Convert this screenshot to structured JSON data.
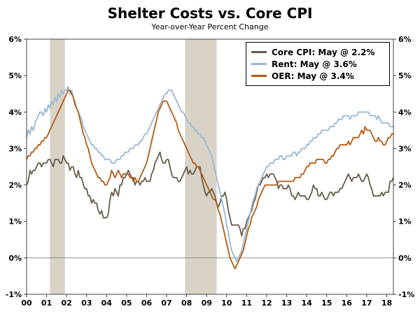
{
  "header": {
    "title": "Shelter Costs vs. Core CPI",
    "subtitle": "Year-over-Year Percent Change"
  },
  "chart_data": {
    "type": "line",
    "title": "Shelter Costs vs. Core CPI",
    "subtitle": "Year-over-Year Percent Change",
    "x_start_year": 2000,
    "x_frequency": "monthly",
    "x_end_label": "May 2018",
    "x_tick_labels": [
      "00",
      "01",
      "02",
      "03",
      "04",
      "05",
      "06",
      "07",
      "08",
      "09",
      "10",
      "11",
      "12",
      "13",
      "14",
      "15",
      "16",
      "17",
      "18"
    ],
    "y_ticks": [
      -1,
      0,
      1,
      2,
      3,
      4,
      5,
      6
    ],
    "y_tick_labels": [
      "-1%",
      "0%",
      "1%",
      "2%",
      "3%",
      "4%",
      "5%",
      "6%"
    ],
    "ylim": [
      -1,
      6
    ],
    "grid": "zero-line-only",
    "legend_position": "top-right",
    "band_color": "#d9d3c7",
    "zero_line_color": "#8c8c8c",
    "axis_color": "#404040",
    "recession_bands": [
      {
        "start": 2001.17,
        "end": 2001.92
      },
      {
        "start": 2007.92,
        "end": 2009.5
      }
    ],
    "series": [
      {
        "name": "Core CPI",
        "legend_label": "Core CPI: May @ 2.2%",
        "color": "#665c49",
        "values": [
          2.0,
          2.1,
          2.4,
          2.3,
          2.4,
          2.4,
          2.5,
          2.6,
          2.6,
          2.5,
          2.6,
          2.6,
          2.6,
          2.7,
          2.7,
          2.6,
          2.5,
          2.7,
          2.7,
          2.7,
          2.6,
          2.6,
          2.8,
          2.7,
          2.6,
          2.6,
          2.4,
          2.5,
          2.5,
          2.3,
          2.2,
          2.4,
          2.2,
          2.2,
          2.0,
          1.9,
          1.9,
          1.7,
          1.7,
          1.5,
          1.6,
          1.5,
          1.5,
          1.3,
          1.2,
          1.3,
          1.1,
          1.1,
          1.1,
          1.2,
          1.6,
          1.8,
          1.7,
          1.9,
          1.8,
          1.7,
          2.0,
          2.0,
          2.2,
          2.2,
          2.3,
          2.4,
          2.3,
          2.2,
          2.2,
          2.0,
          2.1,
          2.1,
          2.0,
          2.1,
          2.1,
          2.2,
          2.1,
          2.1,
          2.1,
          2.3,
          2.4,
          2.6,
          2.7,
          2.8,
          2.9,
          2.7,
          2.6,
          2.6,
          2.7,
          2.7,
          2.5,
          2.3,
          2.2,
          2.2,
          2.2,
          2.1,
          2.1,
          2.2,
          2.3,
          2.4,
          2.5,
          2.3,
          2.4,
          2.3,
          2.3,
          2.4,
          2.5,
          2.5,
          2.5,
          2.2,
          2.0,
          1.8,
          1.7,
          1.8,
          1.8,
          1.9,
          1.8,
          1.7,
          1.5,
          1.4,
          1.5,
          1.7,
          1.7,
          1.8,
          1.6,
          1.3,
          1.1,
          0.9,
          0.9,
          0.9,
          0.9,
          0.9,
          0.8,
          0.6,
          0.8,
          0.8,
          1.0,
          1.1,
          1.2,
          1.3,
          1.5,
          1.6,
          1.8,
          2.0,
          2.0,
          2.1,
          2.2,
          2.2,
          2.3,
          2.2,
          2.3,
          2.3,
          2.3,
          2.2,
          2.1,
          1.9,
          2.0,
          2.0,
          1.9,
          1.9,
          1.9,
          2.0,
          1.9,
          1.7,
          1.7,
          1.6,
          1.7,
          1.8,
          1.7,
          1.7,
          1.7,
          1.7,
          1.6,
          1.6,
          1.7,
          1.8,
          2.0,
          1.9,
          1.9,
          1.7,
          1.7,
          1.8,
          1.7,
          1.6,
          1.6,
          1.7,
          1.8,
          1.8,
          1.7,
          1.8,
          1.8,
          1.8,
          1.9,
          1.9,
          2.0,
          2.1,
          2.2,
          2.3,
          2.2,
          2.1,
          2.2,
          2.2,
          2.2,
          2.3,
          2.2,
          2.1,
          2.1,
          2.2,
          2.3,
          2.2,
          2.0,
          1.9,
          1.7,
          1.7,
          1.7,
          1.7,
          1.7,
          1.8,
          1.7,
          1.8,
          1.8,
          1.8,
          2.1,
          2.1,
          2.2
        ]
      },
      {
        "name": "Rent",
        "legend_label": "Rent: May @ 3.6%",
        "color": "#9ab7d4",
        "values": [
          3.3,
          3.5,
          3.4,
          3.6,
          3.5,
          3.7,
          3.8,
          3.9,
          4.0,
          4.0,
          3.9,
          4.1,
          4.0,
          4.2,
          4.1,
          4.3,
          4.2,
          4.4,
          4.3,
          4.5,
          4.4,
          4.6,
          4.5,
          4.6,
          4.6,
          4.7,
          4.5,
          4.6,
          4.4,
          4.3,
          4.1,
          4.0,
          3.9,
          3.8,
          3.6,
          3.5,
          3.4,
          3.3,
          3.2,
          3.1,
          3.1,
          3.0,
          3.0,
          2.9,
          2.9,
          2.8,
          2.8,
          2.7,
          2.7,
          2.7,
          2.7,
          2.6,
          2.6,
          2.6,
          2.7,
          2.7,
          2.7,
          2.8,
          2.8,
          2.9,
          2.9,
          2.9,
          3.0,
          3.0,
          3.0,
          3.1,
          3.1,
          3.1,
          3.2,
          3.2,
          3.3,
          3.4,
          3.4,
          3.5,
          3.6,
          3.7,
          3.8,
          3.9,
          4.0,
          4.1,
          4.2,
          4.3,
          4.4,
          4.5,
          4.5,
          4.6,
          4.6,
          4.6,
          4.5,
          4.4,
          4.3,
          4.2,
          4.1,
          4.0,
          4.0,
          3.9,
          3.8,
          3.7,
          3.7,
          3.6,
          3.6,
          3.5,
          3.5,
          3.4,
          3.4,
          3.3,
          3.3,
          3.2,
          3.1,
          3.0,
          2.9,
          2.8,
          2.6,
          2.4,
          2.2,
          2.0,
          1.8,
          1.6,
          1.4,
          1.2,
          0.9,
          0.7,
          0.4,
          0.2,
          0.1,
          0.0,
          -0.1,
          0.0,
          0.1,
          0.2,
          0.4,
          0.6,
          0.8,
          1.0,
          1.2,
          1.4,
          1.6,
          1.7,
          1.9,
          2.0,
          2.1,
          2.2,
          2.3,
          2.4,
          2.5,
          2.5,
          2.6,
          2.6,
          2.6,
          2.7,
          2.7,
          2.7,
          2.8,
          2.8,
          2.7,
          2.7,
          2.8,
          2.8,
          2.8,
          2.8,
          2.9,
          2.9,
          2.8,
          2.9,
          2.9,
          3.0,
          3.0,
          3.0,
          3.1,
          3.1,
          3.2,
          3.2,
          3.3,
          3.3,
          3.3,
          3.4,
          3.4,
          3.5,
          3.5,
          3.5,
          3.5,
          3.5,
          3.6,
          3.6,
          3.6,
          3.7,
          3.7,
          3.8,
          3.8,
          3.8,
          3.9,
          3.9,
          3.9,
          3.9,
          3.8,
          3.9,
          3.9,
          3.9,
          3.9,
          4.0,
          4.0,
          4.0,
          4.0,
          4.0,
          4.0,
          4.0,
          3.9,
          3.9,
          3.9,
          3.9,
          3.8,
          3.9,
          3.8,
          3.7,
          3.7,
          3.7,
          3.7,
          3.7,
          3.6,
          3.6,
          3.6
        ]
      },
      {
        "name": "OER",
        "legend_label": "OER: May @ 3.4%",
        "color": "#b45a12",
        "values": [
          2.7,
          2.8,
          2.8,
          2.9,
          2.9,
          3.0,
          3.0,
          3.1,
          3.1,
          3.2,
          3.2,
          3.3,
          3.3,
          3.4,
          3.5,
          3.6,
          3.7,
          3.8,
          3.9,
          4.0,
          4.1,
          4.2,
          4.3,
          4.4,
          4.5,
          4.6,
          4.6,
          4.5,
          4.4,
          4.2,
          4.1,
          4.0,
          3.8,
          3.6,
          3.4,
          3.3,
          3.1,
          3.0,
          2.8,
          2.6,
          2.5,
          2.4,
          2.3,
          2.2,
          2.2,
          2.1,
          2.1,
          2.0,
          2.0,
          2.1,
          2.2,
          2.4,
          2.3,
          2.2,
          2.3,
          2.4,
          2.3,
          2.2,
          2.3,
          2.3,
          2.3,
          2.3,
          2.2,
          2.2,
          2.1,
          2.2,
          2.1,
          2.1,
          2.2,
          2.3,
          2.4,
          2.5,
          2.6,
          2.8,
          3.0,
          3.2,
          3.4,
          3.6,
          3.8,
          4.0,
          4.1,
          4.2,
          4.3,
          4.3,
          4.3,
          4.2,
          4.1,
          4.0,
          3.9,
          3.8,
          3.7,
          3.5,
          3.4,
          3.3,
          3.2,
          3.1,
          3.0,
          2.9,
          2.8,
          2.7,
          2.6,
          2.6,
          2.5,
          2.5,
          2.4,
          2.3,
          2.2,
          2.1,
          2.0,
          1.9,
          1.8,
          1.7,
          1.6,
          1.6,
          1.5,
          1.3,
          1.2,
          1.0,
          0.8,
          0.6,
          0.4,
          0.2,
          0.0,
          -0.1,
          -0.2,
          -0.3,
          -0.2,
          -0.1,
          0.0,
          0.1,
          0.2,
          0.4,
          0.6,
          0.8,
          0.9,
          1.1,
          1.2,
          1.3,
          1.4,
          1.6,
          1.7,
          1.8,
          1.9,
          2.0,
          2.0,
          2.0,
          2.0,
          2.0,
          2.0,
          2.0,
          2.0,
          2.1,
          2.1,
          2.1,
          2.1,
          2.1,
          2.1,
          2.1,
          2.1,
          2.1,
          2.1,
          2.2,
          2.2,
          2.2,
          2.2,
          2.3,
          2.3,
          2.4,
          2.5,
          2.5,
          2.6,
          2.6,
          2.6,
          2.6,
          2.7,
          2.7,
          2.7,
          2.7,
          2.7,
          2.6,
          2.6,
          2.7,
          2.7,
          2.8,
          2.8,
          2.9,
          3.0,
          3.0,
          3.1,
          3.1,
          3.1,
          3.1,
          3.1,
          3.2,
          3.1,
          3.2,
          3.3,
          3.3,
          3.3,
          3.3,
          3.4,
          3.5,
          3.4,
          3.6,
          3.5,
          3.5,
          3.5,
          3.4,
          3.3,
          3.2,
          3.2,
          3.3,
          3.2,
          3.2,
          3.1,
          3.1,
          3.2,
          3.3,
          3.3,
          3.4,
          3.4
        ]
      }
    ]
  }
}
